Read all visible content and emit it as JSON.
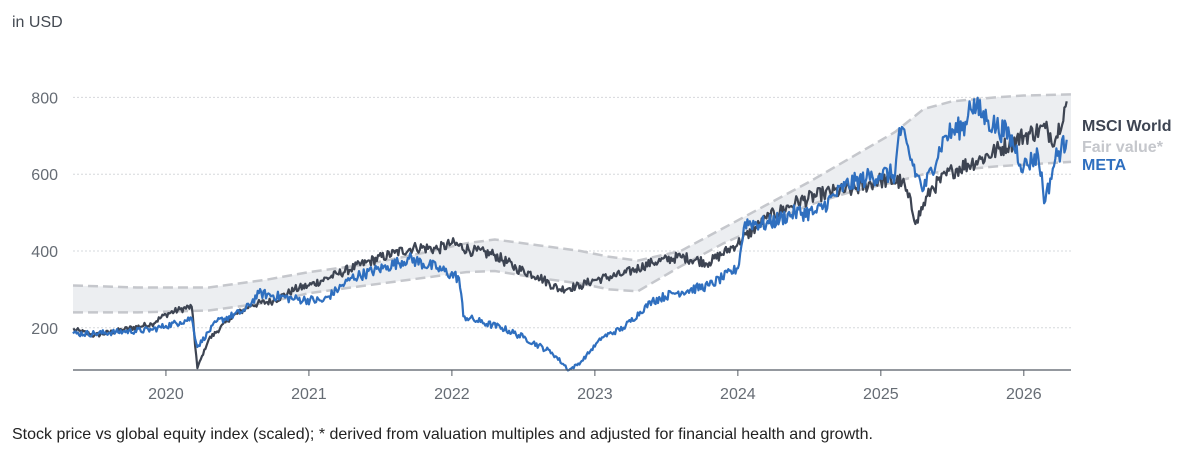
{
  "unit_label": "in USD",
  "caption": "Stock price vs global equity index (scaled); * derived from valuation multiples and adjusted for financial health and growth.",
  "chart_data": {
    "type": "line",
    "title": "",
    "xlabel": "",
    "ylabel": "",
    "xlim": [
      2019.35,
      2026.33
    ],
    "ylim": [
      90,
      835
    ],
    "y_ticks": [
      200,
      400,
      600,
      800
    ],
    "x_ticks": [
      2020,
      2021,
      2022,
      2023,
      2024,
      2025,
      2026
    ],
    "x_tick_labels": [
      "2020",
      "2021",
      "2022",
      "2023",
      "2024",
      "2025",
      "2026"
    ],
    "grid": "horizontal",
    "legend_position": "right",
    "colors": {
      "msci": "#3d4452",
      "meta": "#2f6fbf",
      "fair_value": "#c5c7cc",
      "band_fill": "#eceef1"
    },
    "fair_value_band": {
      "name": "Fair value*",
      "x": [
        2019.35,
        2019.8,
        2020.3,
        2020.7,
        2021.0,
        2021.4,
        2021.8,
        2022.1,
        2022.3,
        2022.6,
        2022.9,
        2023.1,
        2023.3,
        2023.6,
        2023.9,
        2024.2,
        2024.5,
        2024.8,
        2025.1,
        2025.3,
        2025.5,
        2025.8,
        2026.0,
        2026.33
      ],
      "upper": [
        310,
        305,
        305,
        325,
        345,
        365,
        395,
        420,
        430,
        415,
        400,
        385,
        375,
        400,
        460,
        520,
        580,
        645,
        710,
        770,
        790,
        800,
        805,
        808
      ],
      "lower": [
        240,
        240,
        245,
        265,
        290,
        310,
        330,
        345,
        348,
        330,
        315,
        300,
        295,
        360,
        420,
        470,
        520,
        555,
        580,
        600,
        610,
        620,
        625,
        632
      ]
    },
    "series": [
      {
        "name": "MSCI World",
        "x": [
          2019.35,
          2019.5,
          2019.7,
          2019.9,
          2020.0,
          2020.1,
          2020.18,
          2020.22,
          2020.3,
          2020.45,
          2020.6,
          2020.75,
          2020.9,
          2021.0,
          2021.2,
          2021.4,
          2021.6,
          2021.75,
          2021.9,
          2022.0,
          2022.15,
          2022.3,
          2022.45,
          2022.6,
          2022.75,
          2022.9,
          2023.0,
          2023.2,
          2023.4,
          2023.6,
          2023.8,
          2024.0,
          2024.2,
          2024.4,
          2024.6,
          2024.8,
          2025.0,
          2025.15,
          2025.25,
          2025.35,
          2025.5,
          2025.7,
          2025.9,
          2026.0,
          2026.15,
          2026.22,
          2026.3
        ],
        "values": [
          195,
          180,
          195,
          210,
          235,
          248,
          255,
          95,
          170,
          225,
          260,
          270,
          300,
          310,
          340,
          370,
          395,
          410,
          405,
          420,
          400,
          390,
          355,
          335,
          300,
          310,
          325,
          340,
          370,
          385,
          370,
          420,
          485,
          525,
          550,
          560,
          585,
          580,
          480,
          560,
          610,
          640,
          680,
          700,
          720,
          690,
          790
        ]
      },
      {
        "name": "META",
        "x": [
          2019.35,
          2019.5,
          2019.7,
          2019.9,
          2020.0,
          2020.1,
          2020.18,
          2020.22,
          2020.35,
          2020.55,
          2020.65,
          2020.9,
          2021.1,
          2021.3,
          2021.55,
          2021.7,
          2021.9,
          2022.05,
          2022.08,
          2022.2,
          2022.35,
          2022.5,
          2022.7,
          2022.82,
          2022.9,
          2023.05,
          2023.2,
          2023.4,
          2023.55,
          2023.8,
          2024.0,
          2024.05,
          2024.2,
          2024.4,
          2024.55,
          2024.75,
          2024.9,
          2025.0,
          2025.1,
          2025.13,
          2025.25,
          2025.3,
          2025.45,
          2025.6,
          2025.62,
          2025.75,
          2025.9,
          2026.0,
          2026.1,
          2026.15,
          2026.22,
          2026.3
        ],
        "values": [
          185,
          185,
          190,
          195,
          205,
          215,
          225,
          150,
          215,
          245,
          290,
          275,
          270,
          330,
          360,
          380,
          355,
          330,
          230,
          215,
          200,
          175,
          135,
          90,
          110,
          175,
          200,
          270,
          290,
          310,
          355,
          475,
          470,
          500,
          500,
          570,
          590,
          600,
          600,
          720,
          600,
          560,
          700,
          730,
          790,
          740,
          700,
          620,
          650,
          530,
          640,
          690
        ]
      }
    ]
  }
}
